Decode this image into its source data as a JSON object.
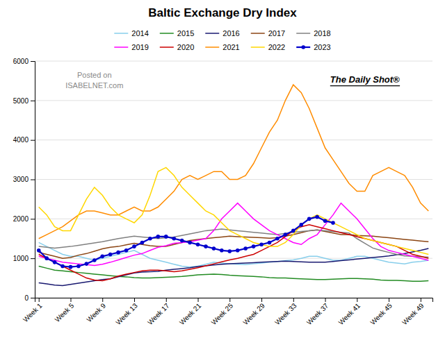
{
  "chart_data": {
    "type": "line",
    "title": "Baltic Exchange Dry Index",
    "categories": [
      "Week 1",
      null,
      null,
      null,
      "Week 5",
      null,
      null,
      null,
      "Week 9",
      null,
      null,
      null,
      "Week 13",
      null,
      null,
      null,
      "Week 17",
      null,
      null,
      null,
      "Week 21",
      null,
      null,
      null,
      "Week 25",
      null,
      null,
      null,
      "Week 29",
      null,
      null,
      null,
      "Week 33",
      null,
      null,
      null,
      "Week 37",
      null,
      null,
      null,
      "Week 41",
      null,
      null,
      null,
      "Week 45",
      null,
      null,
      null,
      "Week 49",
      null
    ],
    "ylim": [
      0,
      6000
    ],
    "yticks": [
      0,
      1000,
      2000,
      3000,
      4000,
      5000,
      6000
    ],
    "grid": true,
    "annotations": [
      "Posted on",
      "ISABELNET.com",
      "The Daily Shot®"
    ],
    "series": [
      {
        "name": "2014",
        "color": "#87CEEB",
        "values": [
          1400,
          1300,
          1200,
          1100,
          1050,
          1050,
          1000,
          950,
          1000,
          1050,
          1100,
          1150,
          1200,
          1100,
          1000,
          950,
          900,
          850,
          800,
          780,
          800,
          850,
          900,
          880,
          860,
          850,
          840,
          860,
          880,
          900,
          920,
          940,
          960,
          1000,
          1050,
          1050,
          1000,
          950,
          950,
          1000,
          1050,
          1050,
          1000,
          950,
          900,
          880,
          860,
          900,
          920,
          950
        ]
      },
      {
        "name": "2015",
        "color": "#228B22",
        "values": [
          800,
          750,
          700,
          680,
          660,
          640,
          620,
          600,
          580,
          560,
          540,
          530,
          510,
          500,
          500,
          510,
          520,
          530,
          540,
          560,
          580,
          590,
          600,
          590,
          570,
          560,
          550,
          540,
          530,
          510,
          500,
          500,
          490,
          480,
          470,
          460,
          460,
          470,
          480,
          490,
          490,
          480,
          470,
          450,
          440,
          440,
          430,
          420,
          420,
          430
        ]
      },
      {
        "name": "2016",
        "color": "#191970",
        "values": [
          380,
          350,
          320,
          310,
          340,
          370,
          400,
          430,
          460,
          480,
          530,
          580,
          630,
          650,
          660,
          670,
          700,
          720,
          740,
          760,
          790,
          810,
          830,
          850,
          860,
          870,
          880,
          890,
          900,
          910,
          920,
          930,
          920,
          910,
          900,
          900,
          900,
          920,
          940,
          960,
          980,
          1000,
          1020,
          1040,
          1060,
          1090,
          1120,
          1160,
          1200,
          1250
        ]
      },
      {
        "name": "2017",
        "color": "#8B4513",
        "values": [
          1150,
          1100,
          1050,
          1000,
          1020,
          1080,
          1120,
          1180,
          1240,
          1280,
          1300,
          1340,
          1380,
          1350,
          1320,
          1300,
          1300,
          1350,
          1400,
          1450,
          1480,
          1500,
          1520,
          1540,
          1560,
          1550,
          1540,
          1530,
          1520,
          1510,
          1520,
          1560,
          1600,
          1650,
          1700,
          1720,
          1680,
          1640,
          1600,
          1600,
          1580,
          1570,
          1560,
          1540,
          1520,
          1500,
          1480,
          1460,
          1440,
          1420
        ]
      },
      {
        "name": "2018",
        "color": "#808080",
        "values": [
          1300,
          1280,
          1260,
          1280,
          1300,
          1330,
          1360,
          1390,
          1420,
          1460,
          1500,
          1530,
          1560,
          1540,
          1520,
          1500,
          1520,
          1540,
          1580,
          1620,
          1660,
          1700,
          1720,
          1740,
          1720,
          1700,
          1680,
          1660,
          1640,
          1620,
          1600,
          1630,
          1660,
          1680,
          1700,
          1720,
          1700,
          1680,
          1660,
          1640,
          1500,
          1380,
          1260,
          1200,
          1150,
          1100,
          1060,
          1050,
          1040,
          1030
        ]
      },
      {
        "name": "2019",
        "color": "#FF00FF",
        "values": [
          1050,
          1000,
          950,
          900,
          880,
          860,
          840,
          820,
          850,
          900,
          960,
          1020,
          1080,
          1120,
          1200,
          1280,
          1320,
          1380,
          1400,
          1420,
          1460,
          1500,
          1700,
          2000,
          2200,
          2400,
          2200,
          2000,
          1850,
          1700,
          1600,
          1500,
          1400,
          1350,
          1500,
          1600,
          1850,
          2100,
          2400,
          2200,
          2000,
          1750,
          1500,
          1300,
          1200,
          1150,
          1100,
          1050,
          1000,
          950
        ]
      },
      {
        "name": "2020",
        "color": "#CC0000",
        "values": [
          1100,
          1000,
          900,
          800,
          700,
          600,
          500,
          450,
          430,
          480,
          550,
          600,
          640,
          680,
          700,
          700,
          680,
          660,
          680,
          720,
          760,
          810,
          860,
          910,
          960,
          1000,
          1050,
          1100,
          1200,
          1300,
          1400,
          1550,
          1700,
          1800,
          1850,
          1800,
          1750,
          1700,
          1650,
          1600,
          1550,
          1500,
          1450,
          1400,
          1350,
          1300,
          1200,
          1100,
          1050,
          1000
        ]
      },
      {
        "name": "2021",
        "color": "#FF8C00",
        "values": [
          1500,
          1600,
          1700,
          1800,
          1950,
          2100,
          2200,
          2200,
          2150,
          2100,
          2100,
          2200,
          2300,
          2200,
          2200,
          2300,
          2500,
          2700,
          3000,
          3100,
          3000,
          3100,
          3200,
          3200,
          3000,
          3000,
          3100,
          3400,
          3800,
          4200,
          4500,
          5000,
          5400,
          5200,
          4800,
          4300,
          3800,
          3500,
          3200,
          2900,
          2700,
          2700,
          3100,
          3200,
          3300,
          3200,
          3100,
          2800,
          2400,
          2200
        ]
      },
      {
        "name": "2022",
        "color": "#FFD700",
        "values": [
          2300,
          2100,
          1800,
          1700,
          1700,
          2100,
          2500,
          2800,
          2600,
          2300,
          2100,
          2000,
          1900,
          2100,
          2600,
          3200,
          3300,
          3100,
          2800,
          2600,
          2400,
          2200,
          2100,
          1900,
          1700,
          1600,
          1500,
          1400,
          1350,
          1300,
          1300,
          1400,
          1600,
          1850,
          2000,
          2100,
          2000,
          1900,
          1800,
          1700,
          1600,
          1500,
          1450,
          1400,
          1350,
          1300,
          1250,
          1200,
          1150,
          1100
        ]
      },
      {
        "name": "2023",
        "color": "#0000CC",
        "marker": "circle",
        "values": [
          1200,
          1000,
          900,
          800,
          780,
          800,
          860,
          950,
          1050,
          1100,
          1150,
          1200,
          1300,
          1400,
          1500,
          1550,
          1550,
          1500,
          1450,
          1400,
          1350,
          1300,
          1250,
          1200,
          1180,
          1200,
          1250,
          1300,
          1350,
          1400,
          1500,
          1600,
          1700,
          1850,
          2000,
          2050,
          1950,
          1900,
          null,
          null,
          null,
          null,
          null,
          null,
          null,
          null,
          null,
          null,
          null,
          null
        ]
      }
    ]
  }
}
